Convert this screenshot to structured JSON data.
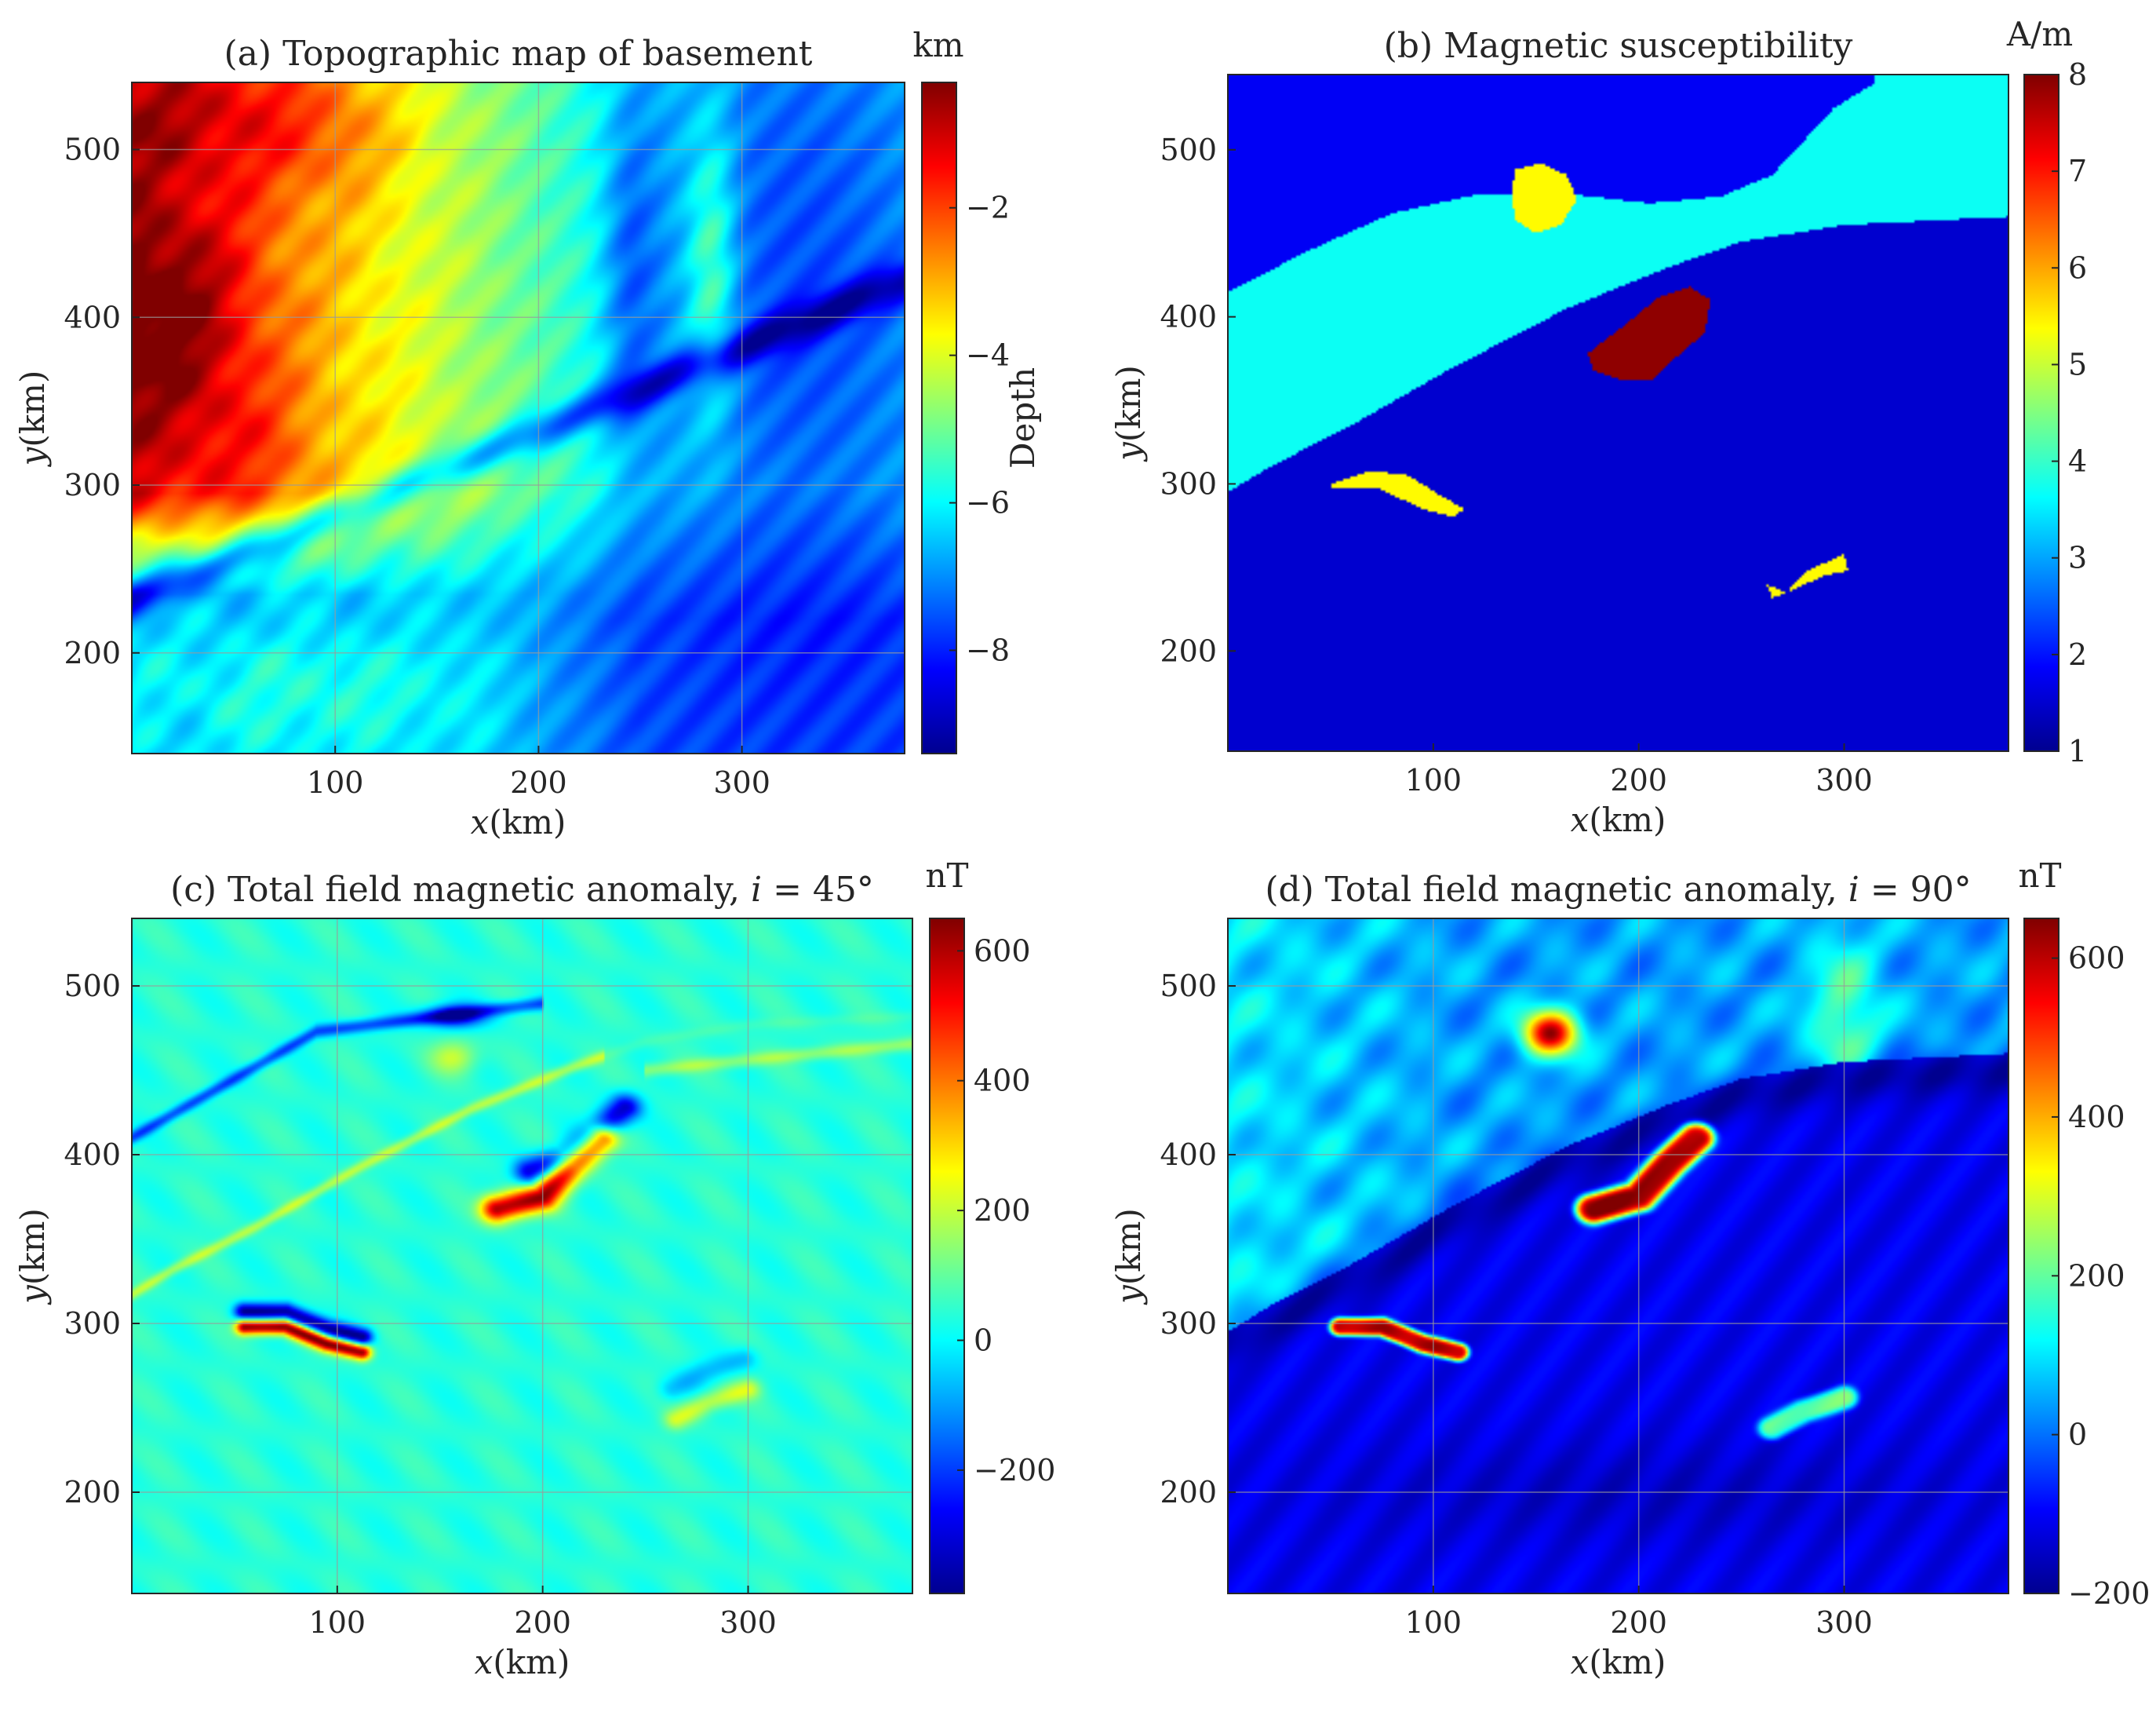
{
  "colormap": [
    "#00008f",
    "#0000ff",
    "#0080ff",
    "#00ffff",
    "#80ff80",
    "#ffff00",
    "#ff8000",
    "#ff0000",
    "#800000"
  ],
  "colors": {
    "axis": "#262626",
    "grid": "#9a9a9a",
    "background": "#ffffff"
  },
  "chart_data": [
    {
      "id": "a",
      "type": "heatmap",
      "title": "(a) Topographic map of basement",
      "xlabel": {
        "italic": "x",
        "rest": "(km)"
      },
      "ylabel": {
        "italic": "y",
        "rest": "(km)"
      },
      "xlim": [
        0,
        380
      ],
      "ylim": [
        140,
        540
      ],
      "xticks": [
        100,
        200,
        300
      ],
      "xticklabels": [
        "100",
        "200",
        "300"
      ],
      "yticks": [
        200,
        300,
        400,
        500
      ],
      "yticklabels": [
        "200",
        "300",
        "400",
        "500"
      ],
      "grid": true,
      "colorbar": {
        "unit": "km",
        "label": "Depth",
        "range": [
          -9.4,
          -0.3
        ],
        "ticks": [
          -2,
          -4,
          -6,
          -8
        ],
        "ticklabels": [
          "−2",
          "−4",
          "−6",
          "−8"
        ]
      },
      "field": {
        "kind": "topography"
      }
    },
    {
      "id": "b",
      "type": "heatmap",
      "title": "(b) Magnetic susceptibility",
      "xlabel": {
        "italic": "x",
        "rest": "(km)"
      },
      "ylabel": {
        "italic": "y",
        "rest": "(km)"
      },
      "xlim": [
        0,
        380
      ],
      "ylim": [
        140,
        545
      ],
      "xticks": [
        100,
        200,
        300
      ],
      "xticklabels": [
        "100",
        "200",
        "300"
      ],
      "yticks": [
        200,
        300,
        400,
        500
      ],
      "yticklabels": [
        "200",
        "300",
        "400",
        "500"
      ],
      "grid": false,
      "colorbar": {
        "unit": "A/m",
        "label": "",
        "range": [
          1,
          8
        ],
        "ticks": [
          1,
          2,
          3,
          4,
          5,
          6,
          7,
          8
        ],
        "ticklabels": [
          "1",
          "2",
          "3",
          "4",
          "5",
          "6",
          "7",
          "8"
        ]
      },
      "field": {
        "kind": "regions",
        "background_value": 1.5,
        "layers": [
          {
            "value": 1.8,
            "polygon": [
              [
                0,
                545
              ],
              [
                380,
                545
              ],
              [
                380,
                460
              ],
              [
                300,
                455
              ],
              [
                250,
                445
              ],
              [
                215,
                430
              ],
              [
                165,
                405
              ],
              [
                110,
                370
              ],
              [
                60,
                335
              ],
              [
                20,
                310
              ],
              [
                0,
                295
              ]
            ]
          },
          {
            "value": 3.7,
            "polygon": [
              [
                0,
                415
              ],
              [
                40,
                440
              ],
              [
                80,
                462
              ],
              [
                120,
                473
              ],
              [
                170,
                473
              ],
              [
                205,
                468
              ],
              [
                240,
                472
              ],
              [
                265,
                485
              ],
              [
                280,
                505
              ],
              [
                295,
                525
              ],
              [
                315,
                540
              ],
              [
                315,
                545
              ],
              [
                380,
                545
              ],
              [
                380,
                460
              ],
              [
                300,
                455
              ],
              [
                250,
                445
              ],
              [
                215,
                430
              ],
              [
                165,
                405
              ],
              [
                110,
                370
              ],
              [
                60,
                335
              ],
              [
                20,
                310
              ],
              [
                0,
                295
              ]
            ]
          },
          {
            "value": 1.5,
            "polygon": [
              [
                0,
                295
              ],
              [
                20,
                310
              ],
              [
                60,
                335
              ],
              [
                110,
                370
              ],
              [
                165,
                405
              ],
              [
                215,
                430
              ],
              [
                250,
                445
              ],
              [
                300,
                455
              ],
              [
                380,
                460
              ],
              [
                380,
                140
              ],
              [
                0,
                140
              ]
            ]
          },
          {
            "value": 5.4,
            "polygon": [
              [
                140,
                488
              ],
              [
                152,
                492
              ],
              [
                165,
                485
              ],
              [
                170,
                470
              ],
              [
                162,
                455
              ],
              [
                150,
                450
              ],
              [
                140,
                458
              ],
              [
                138,
                474
              ]
            ]
          },
          {
            "value": 7.9,
            "polygon": [
              [
                192,
                362
              ],
              [
                178,
                368
              ],
              [
                175,
                378
              ],
              [
                190,
                392
              ],
              [
                210,
                412
              ],
              [
                225,
                418
              ],
              [
                235,
                410
              ],
              [
                232,
                390
              ],
              [
                222,
                380
              ],
              [
                206,
                362
              ]
            ]
          },
          {
            "value": 5.4,
            "polygon": [
              [
                50,
                300
              ],
              [
                70,
                308
              ],
              [
                88,
                305
              ],
              [
                105,
                292
              ],
              [
                115,
                285
              ],
              [
                110,
                280
              ],
              [
                95,
                285
              ],
              [
                72,
                298
              ],
              [
                50,
                298
              ]
            ]
          },
          {
            "value": 5.4,
            "polygon": [
              [
                265,
                232
              ],
              [
                272,
                235
              ],
              [
                282,
                248
              ],
              [
                300,
                258
              ],
              [
                302,
                248
              ],
              [
                290,
                245
              ],
              [
                272,
                235
              ],
              [
                262,
                240
              ]
            ]
          }
        ]
      }
    },
    {
      "id": "c",
      "type": "heatmap",
      "title": "(c) Total field magnetic anomaly, ",
      "title_math": {
        "var": "i",
        "eq": " = 45°"
      },
      "xlabel": {
        "italic": "x",
        "rest": "(km)"
      },
      "ylabel": {
        "italic": "y",
        "rest": "(km)"
      },
      "xlim": [
        0,
        380
      ],
      "ylim": [
        140,
        540
      ],
      "xticks": [
        100,
        200,
        300
      ],
      "xticklabels": [
        "100",
        "200",
        "300"
      ],
      "yticks": [
        200,
        300,
        400,
        500
      ],
      "yticklabels": [
        "200",
        "300",
        "400",
        "500"
      ],
      "grid": true,
      "colorbar": {
        "unit": "nT",
        "label": "",
        "range": [
          -390,
          650
        ],
        "ticks": [
          -200,
          0,
          200,
          400,
          600
        ],
        "ticklabels": [
          "−200",
          "0",
          "200",
          "400",
          "600"
        ]
      },
      "field": {
        "kind": "anomaly45"
      }
    },
    {
      "id": "d",
      "type": "heatmap",
      "title": "(d) Total field magnetic anomaly, ",
      "title_math": {
        "var": "i",
        "eq": " = 90°"
      },
      "xlabel": {
        "italic": "x",
        "rest": "(km)"
      },
      "ylabel": {
        "italic": "y",
        "rest": "(km)"
      },
      "xlim": [
        0,
        380
      ],
      "ylim": [
        140,
        540
      ],
      "xticks": [
        100,
        200,
        300
      ],
      "xticklabels": [
        "100",
        "200",
        "300"
      ],
      "yticks": [
        200,
        300,
        400,
        500
      ],
      "yticklabels": [
        "200",
        "300",
        "400",
        "500"
      ],
      "grid": true,
      "colorbar": {
        "unit": "nT",
        "label": "",
        "range": [
          -200,
          650
        ],
        "ticks": [
          -200,
          0,
          200,
          400,
          600
        ],
        "ticklabels": [
          "−200",
          "0",
          "200",
          "400",
          "600"
        ]
      },
      "field": {
        "kind": "anomaly90"
      }
    }
  ]
}
